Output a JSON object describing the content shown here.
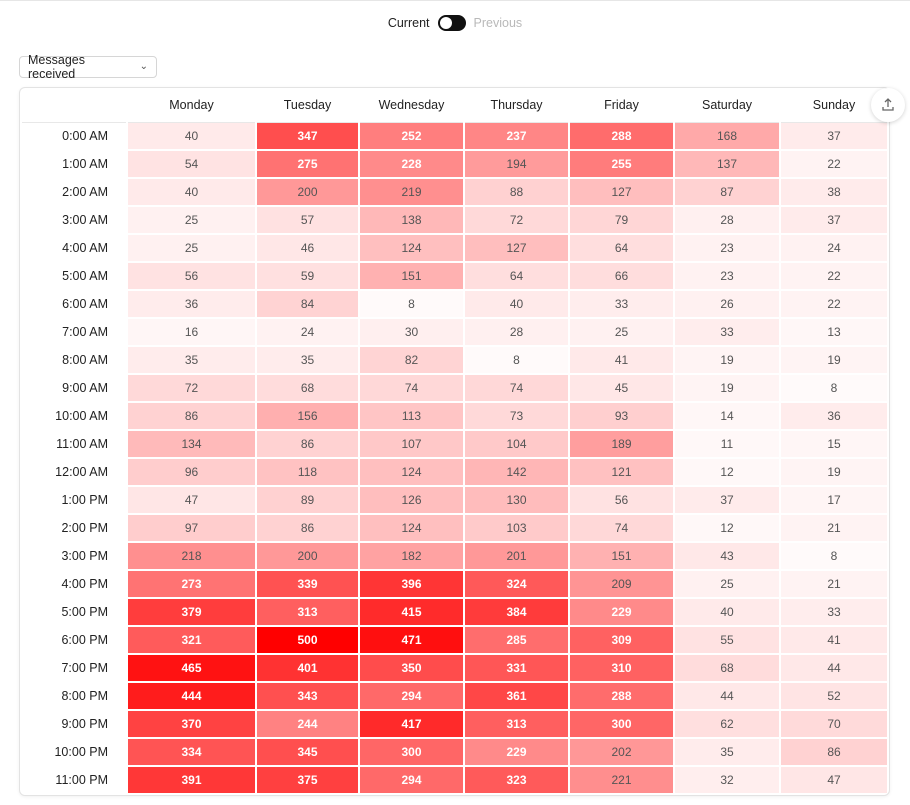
{
  "toggle": {
    "current_label": "Current",
    "previous_label": "Previous",
    "state": "current"
  },
  "dropdown": {
    "label": "Messages received"
  },
  "export_icon": "upload-icon",
  "colors": {
    "max": "#ff0000",
    "min": "#ffffff"
  },
  "chart_data": {
    "type": "heatmap",
    "columns": [
      "Monday",
      "Tuesday",
      "Wednesday",
      "Thursday",
      "Friday",
      "Saturday",
      "Sunday"
    ],
    "rows": [
      "0:00 AM",
      "1:00 AM",
      "2:00 AM",
      "3:00 AM",
      "4:00 AM",
      "5:00 AM",
      "6:00 AM",
      "7:00 AM",
      "8:00 AM",
      "9:00 AM",
      "10:00 AM",
      "11:00 AM",
      "12:00 AM",
      "1:00 PM",
      "2:00 PM",
      "3:00 PM",
      "4:00 PM",
      "5:00 PM",
      "6:00 PM",
      "7:00 PM",
      "8:00 PM",
      "9:00 PM",
      "10:00 PM",
      "11:00 PM"
    ],
    "values": [
      [
        40,
        347,
        252,
        237,
        288,
        168,
        37
      ],
      [
        54,
        275,
        228,
        194,
        255,
        137,
        22
      ],
      [
        40,
        200,
        219,
        88,
        127,
        87,
        38
      ],
      [
        25,
        57,
        138,
        72,
        79,
        28,
        37
      ],
      [
        25,
        46,
        124,
        127,
        64,
        23,
        24
      ],
      [
        56,
        59,
        151,
        64,
        66,
        23,
        22
      ],
      [
        36,
        84,
        8,
        40,
        33,
        26,
        22
      ],
      [
        16,
        24,
        30,
        28,
        25,
        33,
        13
      ],
      [
        35,
        35,
        82,
        8,
        41,
        19,
        19
      ],
      [
        72,
        68,
        74,
        74,
        45,
        19,
        8
      ],
      [
        86,
        156,
        113,
        73,
        93,
        14,
        36
      ],
      [
        134,
        86,
        107,
        104,
        189,
        11,
        15
      ],
      [
        96,
        118,
        124,
        142,
        121,
        12,
        19
      ],
      [
        47,
        89,
        126,
        130,
        56,
        37,
        17
      ],
      [
        97,
        86,
        124,
        103,
        74,
        12,
        21
      ],
      [
        218,
        200,
        182,
        201,
        151,
        43,
        8
      ],
      [
        273,
        339,
        396,
        324,
        209,
        25,
        21
      ],
      [
        379,
        313,
        415,
        384,
        229,
        40,
        33
      ],
      [
        321,
        500,
        471,
        285,
        309,
        55,
        41
      ],
      [
        465,
        401,
        350,
        331,
        310,
        68,
        44
      ],
      [
        444,
        343,
        294,
        361,
        288,
        44,
        52
      ],
      [
        370,
        244,
        417,
        313,
        300,
        62,
        70
      ],
      [
        334,
        345,
        300,
        229,
        202,
        35,
        86
      ],
      [
        391,
        375,
        294,
        323,
        221,
        32,
        47
      ]
    ],
    "value_range": [
      8,
      500
    ]
  }
}
